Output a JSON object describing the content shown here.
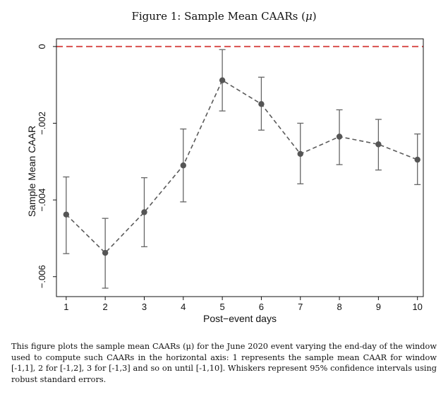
{
  "figure": {
    "title": "Figure 1: Sample Mean CAARs (μ)",
    "caption": "This figure plots the sample mean CAARs (μ) for the June 2020 event varying the end-day of the window used to compute such CAARs in the horizontal axis: 1 represents the sample mean CAAR for window [-1,1], 2 for [-1,2], 3 for [-1,3] and so on until [-1,10]. Whiskers represent 95% confidence intervals using robust standard errors."
  },
  "chart_data": {
    "type": "line",
    "title": "Figure 1: Sample Mean CAARs (μ)",
    "xlabel": "Post−event days",
    "ylabel": "Sample Mean CAAR",
    "x": [
      1,
      2,
      3,
      4,
      5,
      6,
      7,
      8,
      9,
      10
    ],
    "xticks": [
      "1",
      "2",
      "3",
      "4",
      "5",
      "6",
      "7",
      "8",
      "9",
      "10"
    ],
    "yticks": [
      {
        "value": 0,
        "label": "0"
      },
      {
        "value": -0.002,
        "label": "−.002"
      },
      {
        "value": -0.004,
        "label": "−.004"
      },
      {
        "value": -0.006,
        "label": "−.006"
      }
    ],
    "xlim": [
      0.75,
      10.15
    ],
    "ylim": [
      -0.00652,
      0.0002
    ],
    "series": [
      {
        "values": [
          -0.00438,
          -0.00538,
          -0.00432,
          -0.0031,
          -0.00088,
          -0.0015,
          -0.0028,
          -0.00235,
          -0.00255,
          -0.00295
        ],
        "ci_low": [
          -0.0054,
          -0.0063,
          -0.00522,
          -0.00405,
          -0.00168,
          -0.00218,
          -0.00358,
          -0.00308,
          -0.00322,
          -0.0036
        ],
        "ci_high": [
          -0.0034,
          -0.00448,
          -0.00342,
          -0.00215,
          -8e-05,
          -0.0008,
          -0.002,
          -0.00165,
          -0.0019,
          -0.00228
        ],
        "color": "#5a5a5a",
        "line_style": "dashed"
      }
    ],
    "reference_line": {
      "y": 0,
      "color": "#d9504f",
      "style": "dashed"
    },
    "grid": false,
    "legend": "none"
  }
}
